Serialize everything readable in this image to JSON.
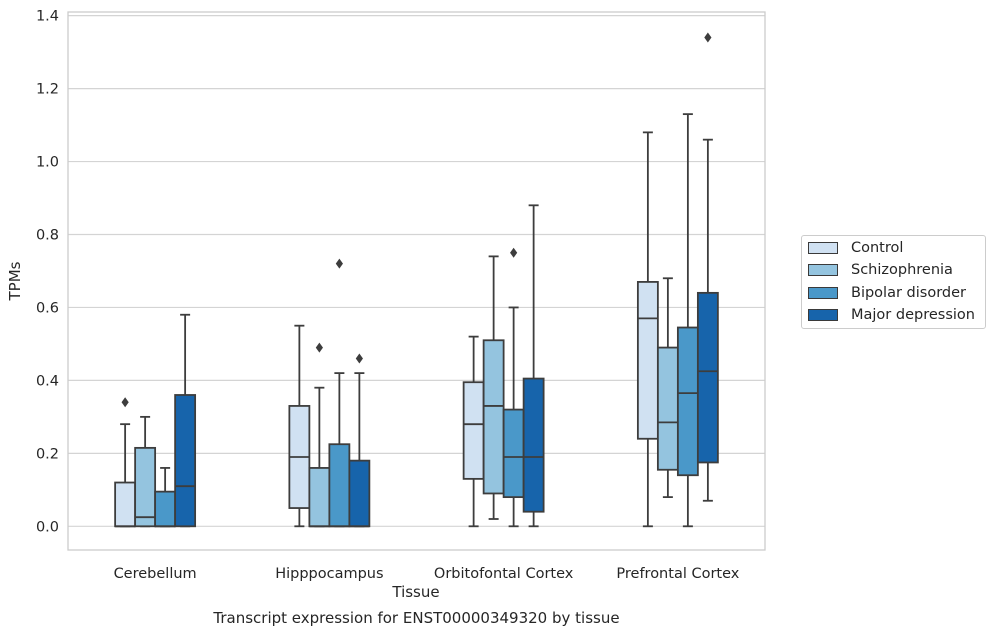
{
  "caption": "Transcript expression for ENST00000349320 by tissue",
  "chart_data": {
    "type": "boxplot",
    "title": "",
    "xlabel": "Tissue",
    "ylabel": "TPMs",
    "ylim": [
      -0.065,
      1.41
    ],
    "yticks": [
      "0.0",
      "0.2",
      "0.4",
      "0.6",
      "0.8",
      "1.0",
      "1.2",
      "1.4"
    ],
    "grid": "horizontal",
    "legend_position": "right",
    "categories": [
      "Cerebellum",
      "Hipppocampus",
      "Orbitofontal Cortex",
      "Prefrontal Cortex"
    ],
    "series": [
      {
        "name": "Control",
        "color": "#d0e1f2",
        "boxes": [
          {
            "whislo": 0.0,
            "q1": 0.0,
            "med": 0.0,
            "q3": 0.12,
            "whishi": 0.28,
            "fliers": [
              0.34
            ]
          },
          {
            "whislo": 0.0,
            "q1": 0.05,
            "med": 0.19,
            "q3": 0.33,
            "whishi": 0.55,
            "fliers": []
          },
          {
            "whislo": 0.0,
            "q1": 0.13,
            "med": 0.28,
            "q3": 0.395,
            "whishi": 0.52,
            "fliers": []
          },
          {
            "whislo": 0.0,
            "q1": 0.24,
            "med": 0.57,
            "q3": 0.67,
            "whishi": 1.08,
            "fliers": []
          }
        ]
      },
      {
        "name": "Schizophrenia",
        "color": "#94c4df",
        "boxes": [
          {
            "whislo": 0.0,
            "q1": 0.0,
            "med": 0.025,
            "q3": 0.215,
            "whishi": 0.3,
            "fliers": []
          },
          {
            "whislo": 0.0,
            "q1": 0.0,
            "med": 0.0,
            "q3": 0.16,
            "whishi": 0.38,
            "fliers": [
              0.49
            ]
          },
          {
            "whislo": 0.02,
            "q1": 0.09,
            "med": 0.33,
            "q3": 0.51,
            "whishi": 0.74,
            "fliers": []
          },
          {
            "whislo": 0.08,
            "q1": 0.155,
            "med": 0.285,
            "q3": 0.49,
            "whishi": 0.68,
            "fliers": []
          }
        ]
      },
      {
        "name": "Bipolar disorder",
        "color": "#4a98c9",
        "boxes": [
          {
            "whislo": 0.0,
            "q1": 0.0,
            "med": 0.0,
            "q3": 0.095,
            "whishi": 0.16,
            "fliers": []
          },
          {
            "whislo": 0.0,
            "q1": 0.0,
            "med": 0.0,
            "q3": 0.225,
            "whishi": 0.42,
            "fliers": [
              0.72
            ]
          },
          {
            "whislo": 0.0,
            "q1": 0.08,
            "med": 0.19,
            "q3": 0.32,
            "whishi": 0.6,
            "fliers": [
              0.75
            ]
          },
          {
            "whislo": 0.0,
            "q1": 0.14,
            "med": 0.365,
            "q3": 0.545,
            "whishi": 1.13,
            "fliers": []
          }
        ]
      },
      {
        "name": "Major depression",
        "color": "#1764ab",
        "boxes": [
          {
            "whislo": 0.0,
            "q1": 0.0,
            "med": 0.11,
            "q3": 0.36,
            "whishi": 0.58,
            "fliers": []
          },
          {
            "whislo": 0.0,
            "q1": 0.0,
            "med": 0.0,
            "q3": 0.18,
            "whishi": 0.42,
            "fliers": [
              0.46
            ]
          },
          {
            "whislo": 0.0,
            "q1": 0.04,
            "med": 0.19,
            "q3": 0.405,
            "whishi": 0.88,
            "fliers": []
          },
          {
            "whislo": 0.07,
            "q1": 0.175,
            "med": 0.425,
            "q3": 0.64,
            "whishi": 1.06,
            "fliers": [
              1.34
            ]
          }
        ]
      }
    ]
  }
}
